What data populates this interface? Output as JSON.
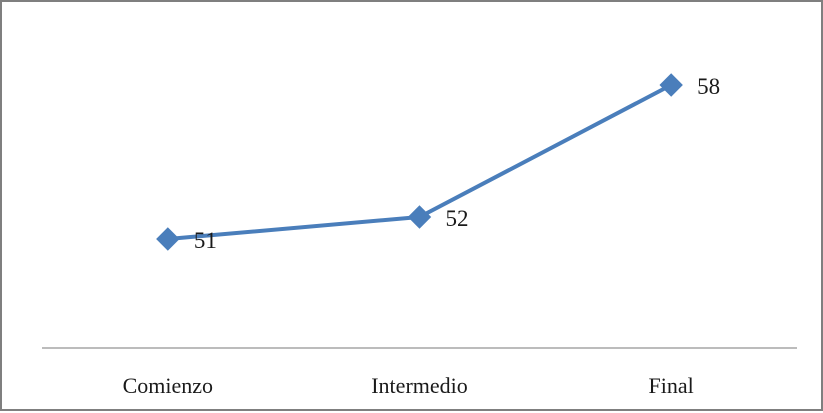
{
  "chart_data": {
    "type": "line",
    "categories": [
      "Comienzo",
      "Intermedio",
      "Final"
    ],
    "series": [
      {
        "values": [
          51,
          52,
          58
        ],
        "color": "#4a7ebb",
        "marker": "diamond",
        "data_labels": [
          "51",
          "52",
          "58"
        ]
      }
    ],
    "title": "",
    "xlabel": "",
    "ylabel": "",
    "ylim": [
      45,
      60
    ],
    "grid": false,
    "legend": "none",
    "axis_color": "#a6a6a6"
  }
}
